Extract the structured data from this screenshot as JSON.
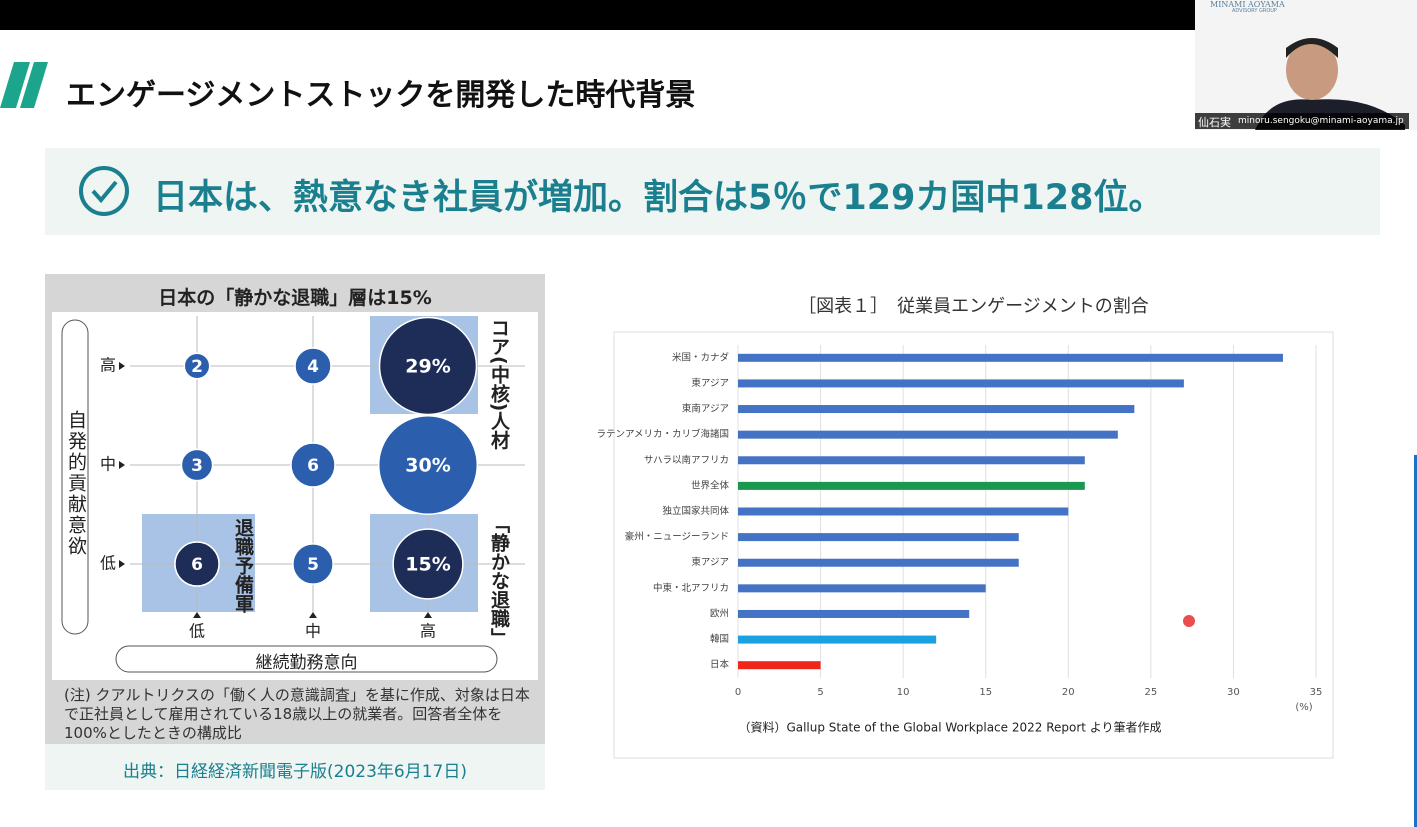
{
  "header": {
    "title": "エンゲージメントストックを開発した時代背景"
  },
  "banner": {
    "text": "日本は、熱意なき社員が増加。割合は5％で129カ国中128位。"
  },
  "video": {
    "logo": "MINAMI AOYAMA",
    "logo_sub": "ADVISORY GROUP",
    "caption_name": "仙石実",
    "caption_email": "minoru.sengoku@minami-aoyama.jp"
  },
  "matrix": {
    "title": "日本の「静かな退職」層は15%",
    "y_label": "自発的貢献意欲",
    "x_label": "継続勤務意向",
    "rows": [
      "高",
      "中",
      "低"
    ],
    "columns": [
      "低",
      "中",
      "高"
    ],
    "cells": [
      [
        {
          "value": 2,
          "color": "#2b5fad"
        },
        {
          "value": 4,
          "color": "#2b5fad"
        },
        {
          "value": 29,
          "label": "29%",
          "color": "#1e2d57"
        }
      ],
      [
        {
          "value": 3,
          "color": "#2b5fad"
        },
        {
          "value": 6,
          "color": "#2b5fad"
        },
        {
          "value": 30,
          "label": "30%",
          "color": "#2b5fad"
        }
      ],
      [
        {
          "value": 6,
          "color": "#1e2d57"
        },
        {
          "value": 5,
          "color": "#2b5fad"
        },
        {
          "value": 15,
          "label": "15%",
          "color": "#1e2d57"
        }
      ]
    ],
    "group_labels": [
      "コア(中核)人材",
      "「静かな退職」",
      "退職予備軍"
    ],
    "note": "(注) クアルトリクスの「働く人の意識調査」を基に作成、対象は日本で正社員として雇用されている18歳以上の就業者。回答者全体を100%としたときの構成比",
    "source": "出典：日経経済新聞電子版(2023年6月17日)"
  },
  "chart": {
    "type": "bar",
    "title": "［図表１］　従業員エンゲージメントの割合",
    "categories": [
      "米国・カナダ",
      "東アジア",
      "東南アジア",
      "ラテンアメリカ・カリブ海諸国",
      "サハラ以南アフリカ",
      "世界全体",
      "独立国家共同体",
      "豪州・ニュージーランド",
      "東アジア",
      "中東・北アフリカ",
      "欧州",
      "韓国",
      "日本"
    ],
    "values": [
      33,
      27,
      24,
      23,
      21,
      21,
      20,
      17,
      17,
      15,
      14,
      12,
      5
    ],
    "colors": [
      "#4472c4",
      "#4472c4",
      "#4472c4",
      "#4472c4",
      "#4472c4",
      "#1a9850",
      "#4472c4",
      "#4472c4",
      "#4472c4",
      "#4472c4",
      "#4472c4",
      "#1ba1e2",
      "#f0261b"
    ],
    "xlim": [
      0,
      35
    ],
    "xticks": [
      0,
      5,
      10,
      15,
      20,
      25,
      30,
      35
    ],
    "x_unit": "(%)",
    "grid": true,
    "source_note": "（資料）Gallup  State of the Global Workplace 2022 Report より筆者作成"
  }
}
